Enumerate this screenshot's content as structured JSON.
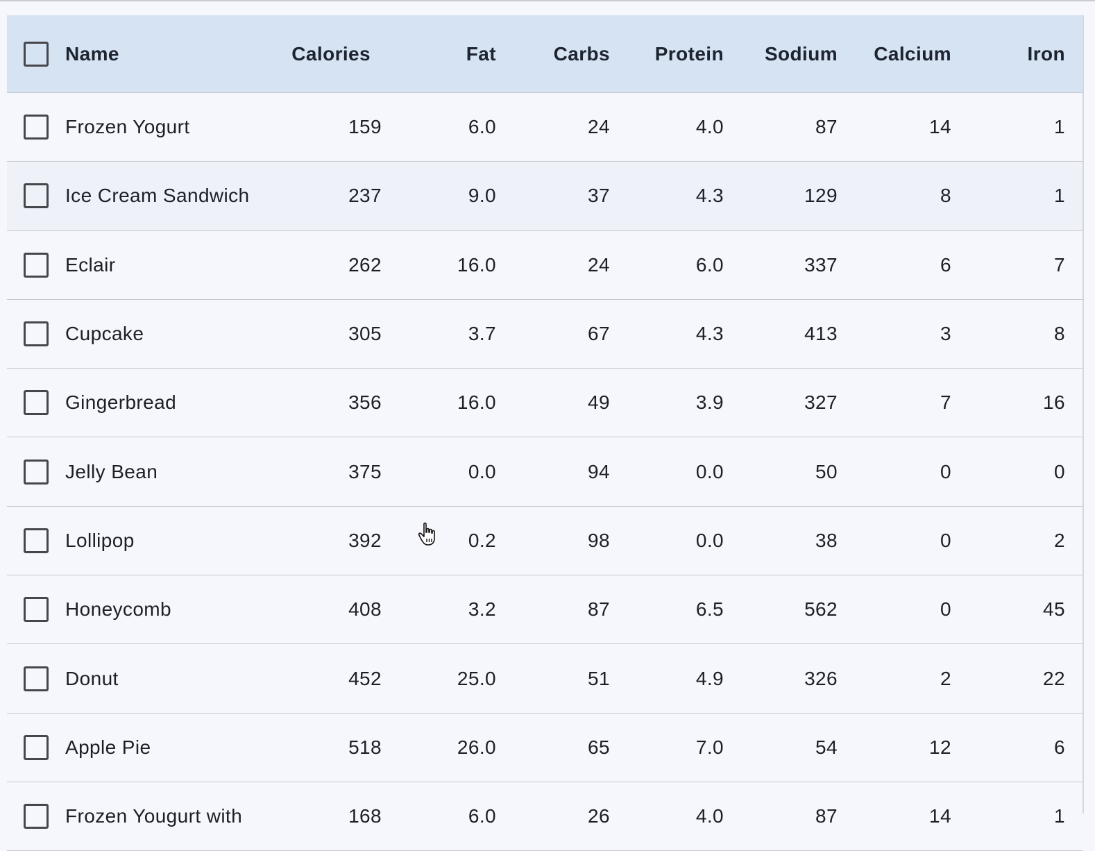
{
  "table": {
    "columns": [
      "Name",
      "Calories",
      "Fat",
      "Carbs",
      "Protein",
      "Sodium",
      "Calcium",
      "Iron"
    ],
    "rows": [
      [
        "Frozen Yogurt",
        "159",
        "6.0",
        "24",
        "4.0",
        "87",
        "14",
        "1"
      ],
      [
        "Ice Cream Sandwich",
        "237",
        "9.0",
        "37",
        "4.3",
        "129",
        "8",
        "1"
      ],
      [
        "Eclair",
        "262",
        "16.0",
        "24",
        "6.0",
        "337",
        "6",
        "7"
      ],
      [
        "Cupcake",
        "305",
        "3.7",
        "67",
        "4.3",
        "413",
        "3",
        "8"
      ],
      [
        "Gingerbread",
        "356",
        "16.0",
        "49",
        "3.9",
        "327",
        "7",
        "16"
      ],
      [
        "Jelly Bean",
        "375",
        "0.0",
        "94",
        "0.0",
        "50",
        "0",
        "0"
      ],
      [
        "Lollipop",
        "392",
        "0.2",
        "98",
        "0.0",
        "38",
        "0",
        "2"
      ],
      [
        "Honeycomb",
        "408",
        "3.2",
        "87",
        "6.5",
        "562",
        "0",
        "45"
      ],
      [
        "Donut",
        "452",
        "25.0",
        "51",
        "4.9",
        "326",
        "2",
        "22"
      ],
      [
        "Apple Pie",
        "518",
        "26.0",
        "65",
        "7.0",
        "54",
        "12",
        "6"
      ],
      [
        "Frozen Yougurt with",
        "168",
        "6.0",
        "26",
        "4.0",
        "87",
        "14",
        "1"
      ]
    ]
  },
  "colors": {
    "header_bg": "#d6e3f3",
    "row_bg": "#f5f7fc",
    "hover_row_bg": "#eef1f8"
  },
  "cursor": "hand-pointer-icon"
}
